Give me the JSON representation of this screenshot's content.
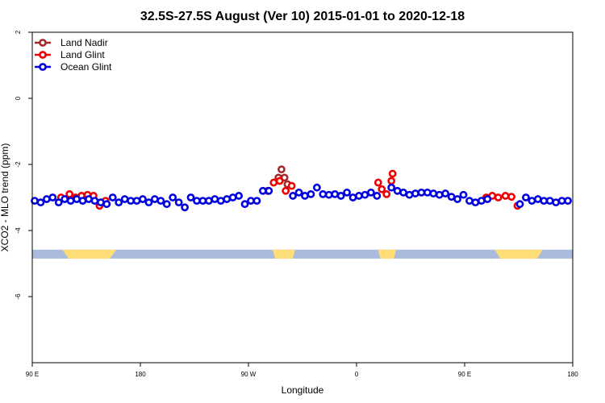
{
  "chart_data": {
    "type": "scatter",
    "title": "32.5S-27.5S August (Ver 10)   2015-01-01 to 2020-12-18",
    "xlabel": "Longitude",
    "ylabel": "XCO2 - MLO trend (ppm)",
    "xlim": [
      -90,
      360
    ],
    "ylim": [
      -8,
      2
    ],
    "x_ticks": [
      {
        "value": -90,
        "label": "90 E"
      },
      {
        "value": 0,
        "label": "180"
      },
      {
        "value": 90,
        "label": "90 W"
      },
      {
        "value": 180,
        "label": "0"
      },
      {
        "value": 270,
        "label": "90 E"
      },
      {
        "value": 360,
        "label": "180"
      }
    ],
    "y_ticks": [
      {
        "value": 2,
        "label": "2"
      },
      {
        "value": 0,
        "label": "0"
      },
      {
        "value": -2,
        "label": "-2"
      },
      {
        "value": -4,
        "label": "-4"
      },
      {
        "value": -6,
        "label": "-6"
      }
    ],
    "legend_position": "top-left",
    "land_strip": {
      "y_range": [
        -4.85,
        -4.58
      ],
      "ocean_color": "#aabbdd",
      "land_color": "#ffdd77",
      "land_x_ranges": [
        [
          -65,
          -20
        ],
        [
          110,
          129
        ],
        [
          198,
          213
        ],
        [
          295,
          335
        ]
      ]
    },
    "series": [
      {
        "name": "Land Nadir",
        "color": "#a52a2a",
        "points": [
          [
            115,
            -2.4
          ],
          [
            117.5,
            -2.15
          ],
          [
            120,
            -2.4
          ],
          [
            122.5,
            -2.6
          ]
        ]
      },
      {
        "name": "Land Glint",
        "color": "#ee0000",
        "points": [
          [
            -66,
            -3.0
          ],
          [
            -59,
            -2.9
          ],
          [
            -54,
            -3.0
          ],
          [
            -49,
            -2.95
          ],
          [
            -44,
            -2.92
          ],
          [
            -39,
            -2.95
          ],
          [
            -34,
            -3.25
          ],
          [
            -29,
            -3.1
          ],
          [
            106,
            -2.8
          ],
          [
            111,
            -2.55
          ],
          [
            116,
            -2.5
          ],
          [
            121,
            -2.8
          ],
          [
            126,
            -2.65
          ],
          [
            198,
            -2.55
          ],
          [
            201,
            -2.75
          ],
          [
            205,
            -2.9
          ],
          [
            209,
            -2.5
          ],
          [
            210,
            -2.28
          ],
          [
            288,
            -3.0
          ],
          [
            293,
            -2.95
          ],
          [
            298,
            -3.0
          ],
          [
            304,
            -2.95
          ],
          [
            309,
            -2.98
          ],
          [
            314,
            -3.25
          ]
        ]
      },
      {
        "name": "Ocean Glint",
        "color": "#0000dd",
        "points": [
          [
            -88,
            -3.1
          ],
          [
            -83,
            -3.15
          ],
          [
            -78,
            -3.05
          ],
          [
            -73,
            -3.0
          ],
          [
            -68,
            -3.15
          ],
          [
            -63,
            -3.05
          ],
          [
            -58,
            -3.1
          ],
          [
            -53,
            -3.05
          ],
          [
            -48,
            -3.1
          ],
          [
            -43,
            -3.05
          ],
          [
            -38,
            -3.1
          ],
          [
            -33,
            -3.15
          ],
          [
            -28,
            -3.2
          ],
          [
            -23,
            -3.0
          ],
          [
            -18,
            -3.15
          ],
          [
            -13,
            -3.05
          ],
          [
            -8,
            -3.1
          ],
          [
            -3,
            -3.1
          ],
          [
            2,
            -3.05
          ],
          [
            7,
            -3.15
          ],
          [
            12,
            -3.05
          ],
          [
            17,
            -3.1
          ],
          [
            22,
            -3.2
          ],
          [
            27,
            -3.0
          ],
          [
            32,
            -3.15
          ],
          [
            37,
            -3.3
          ],
          [
            42,
            -3.0
          ],
          [
            47,
            -3.1
          ],
          [
            52,
            -3.1
          ],
          [
            57,
            -3.1
          ],
          [
            62,
            -3.05
          ],
          [
            67,
            -3.1
          ],
          [
            72,
            -3.05
          ],
          [
            77,
            -3.0
          ],
          [
            82,
            -2.95
          ],
          [
            87,
            -3.2
          ],
          [
            92,
            -3.1
          ],
          [
            97,
            -3.1
          ],
          [
            102,
            -2.8
          ],
          [
            107,
            -2.8
          ],
          [
            127,
            -2.95
          ],
          [
            132,
            -2.85
          ],
          [
            137,
            -2.95
          ],
          [
            142,
            -2.9
          ],
          [
            147,
            -2.7
          ],
          [
            152,
            -2.9
          ],
          [
            157,
            -2.92
          ],
          [
            162,
            -2.9
          ],
          [
            167,
            -2.95
          ],
          [
            172,
            -2.85
          ],
          [
            177,
            -3.0
          ],
          [
            182,
            -2.95
          ],
          [
            187,
            -2.92
          ],
          [
            192,
            -2.85
          ],
          [
            197,
            -2.95
          ],
          [
            209,
            -2.7
          ],
          [
            214,
            -2.8
          ],
          [
            219,
            -2.85
          ],
          [
            224,
            -2.92
          ],
          [
            229,
            -2.88
          ],
          [
            234,
            -2.85
          ],
          [
            239,
            -2.85
          ],
          [
            244,
            -2.88
          ],
          [
            249,
            -2.92
          ],
          [
            254,
            -2.88
          ],
          [
            259,
            -2.98
          ],
          [
            264,
            -3.05
          ],
          [
            269,
            -2.92
          ],
          [
            274,
            -3.1
          ],
          [
            279,
            -3.15
          ],
          [
            284,
            -3.1
          ],
          [
            289,
            -3.05
          ],
          [
            316,
            -3.2
          ],
          [
            321,
            -3.0
          ],
          [
            326,
            -3.1
          ],
          [
            331,
            -3.05
          ],
          [
            336,
            -3.1
          ],
          [
            341,
            -3.1
          ],
          [
            346,
            -3.15
          ],
          [
            351,
            -3.1
          ],
          [
            356,
            -3.1
          ]
        ]
      }
    ]
  }
}
